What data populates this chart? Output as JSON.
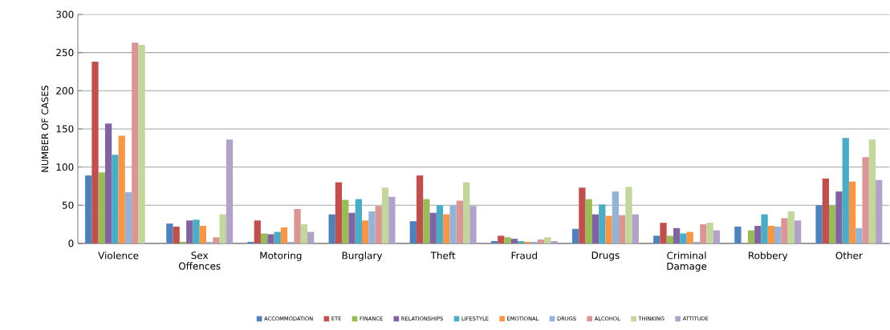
{
  "chart_data": {
    "type": "bar",
    "ylabel": "NUMBER OF CASES",
    "categories": [
      "Violence",
      "Sex Offences",
      "Motoring",
      "Burglary",
      "Theft",
      "Fraud",
      "Drugs",
      "Criminal Damage",
      "Robbery",
      "Other"
    ],
    "ylim": [
      0,
      300
    ],
    "yticks": [
      0,
      50,
      100,
      150,
      200,
      250,
      300
    ],
    "grid": "y",
    "legend": "bottom",
    "series": [
      {
        "name": "ACCOMMODATION",
        "color": "#4f81bd",
        "values": [
          89,
          26,
          2,
          38,
          29,
          3,
          19,
          10,
          22,
          50
        ]
      },
      {
        "name": "ETE",
        "color": "#c0504d",
        "values": [
          238,
          22,
          30,
          80,
          89,
          10,
          73,
          27,
          null,
          85
        ]
      },
      {
        "name": "FINANCE",
        "color": "#9bbb59",
        "values": [
          93,
          2,
          13,
          57,
          58,
          8,
          58,
          10,
          17,
          50
        ]
      },
      {
        "name": "RELATIONSHIPS",
        "color": "#8064a2",
        "values": [
          157,
          30,
          12,
          40,
          40,
          6,
          38,
          20,
          23,
          68
        ]
      },
      {
        "name": "LIFESTYLE",
        "color": "#4bacc6",
        "values": [
          116,
          31,
          15,
          58,
          50,
          3,
          51,
          13,
          38,
          138
        ]
      },
      {
        "name": "EMOTIONAL",
        "color": "#f79646",
        "values": [
          141,
          23,
          21,
          30,
          38,
          2,
          36,
          15,
          23,
          81
        ]
      },
      {
        "name": "DRUGS",
        "color": "#95b3d7",
        "values": [
          67,
          2,
          2,
          42,
          50,
          2,
          68,
          2,
          22,
          20
        ]
      },
      {
        "name": "ALCOHOL",
        "color": "#d99694",
        "values": [
          263,
          8,
          45,
          49,
          56,
          5,
          37,
          25,
          33,
          113
        ]
      },
      {
        "name": "THINKING",
        "color": "#c3d69b",
        "values": [
          260,
          38,
          25,
          73,
          80,
          8,
          74,
          27,
          42,
          136
        ]
      },
      {
        "name": "ATTITUDE",
        "color": "#b3a2c7",
        "values": [
          null,
          136,
          15,
          61,
          49,
          3,
          38,
          17,
          30,
          83
        ]
      }
    ]
  }
}
